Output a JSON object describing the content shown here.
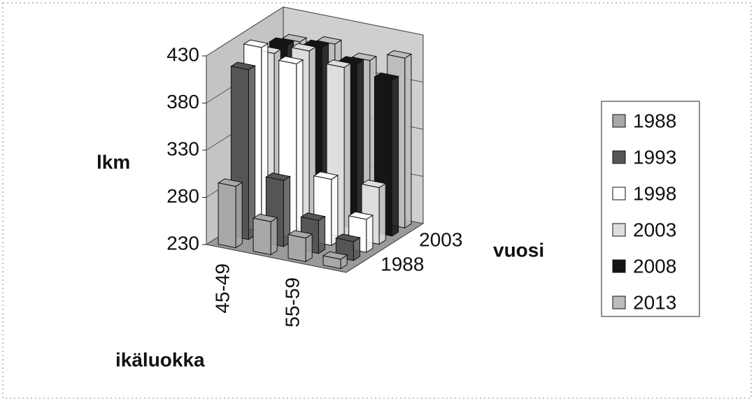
{
  "chart_data": {
    "type": "bar3d",
    "y_label": "lkm",
    "x_label": "ikäluokka",
    "z_label": "vuosi",
    "categories": [
      "45-49",
      null,
      "55-59",
      null
    ],
    "series": [
      {
        "name": "1988",
        "color": "#a8a8a8",
        "values": [
          295,
          265,
          255,
          240
        ]
      },
      {
        "name": "1993",
        "color": "#555555",
        "values": [
          410,
          300,
          265,
          250
        ]
      },
      {
        "name": "1998",
        "color": "#ffffff",
        "values": [
          425,
          415,
          300,
          265
        ]
      },
      {
        "name": "2003",
        "color": "#dedede",
        "values": [
          410,
          420,
          410,
          290
        ]
      },
      {
        "name": "2008",
        "color": "#151515",
        "values": [
          410,
          415,
          405,
          395
        ]
      },
      {
        "name": "2013",
        "color": "#bdbdbd",
        "values": [
          405,
          410,
          400,
          410
        ]
      }
    ],
    "ylim": [
      230,
      430
    ],
    "yticks": [
      230,
      280,
      330,
      380,
      430
    ],
    "grid": true,
    "legend": "right"
  }
}
